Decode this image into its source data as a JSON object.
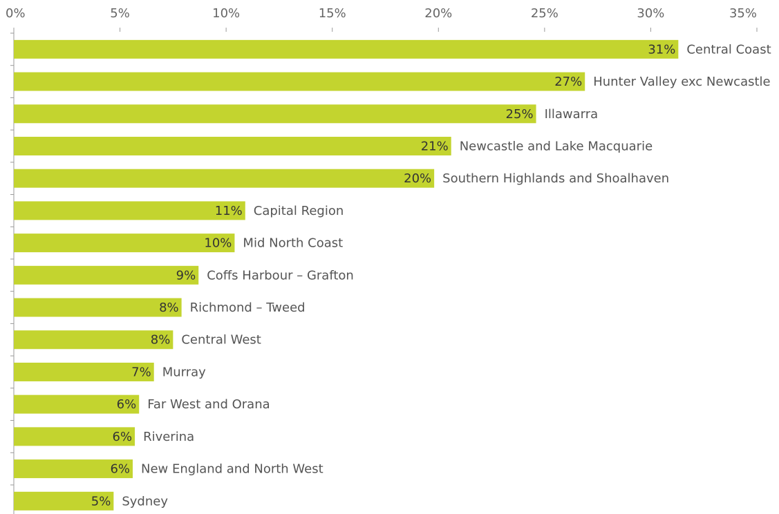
{
  "chart_data": {
    "type": "barh",
    "categories": [
      "Central Coast",
      "Hunter Valley exc Newcastle",
      "Illawarra",
      "Newcastle and Lake Macquarie",
      "Southern Highlands and Shoalhaven",
      "Capital Region",
      "Mid North Coast",
      "Coffs Harbour – Grafton",
      "Richmond – Tweed",
      "Central West",
      "Murray",
      "Far West and Orana",
      "Riverina",
      "New England and North West",
      "Sydney"
    ],
    "values": [
      31.3,
      26.9,
      24.6,
      20.6,
      19.8,
      10.9,
      10.4,
      8.7,
      7.9,
      7.5,
      6.6,
      5.9,
      5.7,
      5.6,
      4.7
    ],
    "value_labels": [
      "31%",
      "27%",
      "25%",
      "21%",
      "20%",
      "11%",
      "10%",
      "9%",
      "8%",
      "8%",
      "7%",
      "6%",
      "6%",
      "6%",
      "5%"
    ],
    "color": "#c3d42f",
    "xlim": [
      0,
      35
    ],
    "xticks": [
      {
        "value": 0,
        "label": "0%"
      },
      {
        "value": 5,
        "label": "5%"
      },
      {
        "value": 10,
        "label": "10%"
      },
      {
        "value": 15,
        "label": "15%"
      },
      {
        "value": 20,
        "label": "20%"
      },
      {
        "value": 25,
        "label": "25%"
      },
      {
        "value": 30,
        "label": "30%"
      },
      {
        "value": 35,
        "label": "35%"
      }
    ]
  }
}
